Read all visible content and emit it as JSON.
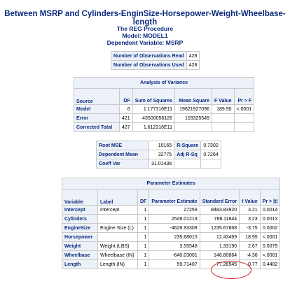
{
  "title": "Between MSRP and Cylinders-EnginSize-Horsepower-Weight-Wheelbase-length",
  "procedure": "The REG Procedure",
  "model": "Model: MODEL1",
  "dependent": "Dependent Variable: MSRP",
  "observations": {
    "read_label": "Number of Observations Read",
    "read_value": "428",
    "used_label": "Number of Observations Used",
    "used_value": "428"
  },
  "anova": {
    "caption": "Analysis of Variance",
    "headers": [
      "Source",
      "DF",
      "Sum of Squares",
      "Mean Square",
      "F Value",
      "Pr > F"
    ],
    "rows": [
      {
        "source": "Model",
        "df": "6",
        "ss": "1.177316E11",
        "ms": "19621927096",
        "f": "189.90",
        "p": "<.0001"
      },
      {
        "source": "Error",
        "df": "421",
        "ss": "43500056126",
        "ms": "103325549",
        "f": "",
        "p": ""
      },
      {
        "source": "Corrected Total",
        "df": "427",
        "ss": "1.612316E11",
        "ms": "",
        "f": "",
        "p": ""
      }
    ]
  },
  "fit": {
    "rows": [
      {
        "label": "Root MSE",
        "value": "10165",
        "label2": "R-Square",
        "value2": "0.7302"
      },
      {
        "label": "Dependent Mean",
        "value": "32775",
        "label2": "Adj R-Sq",
        "value2": "0.7264"
      },
      {
        "label": "Coeff Var",
        "value": "31.01438",
        "label2": "",
        "value2": ""
      }
    ]
  },
  "params": {
    "caption": "Parameter Estimates",
    "headers": [
      "Variable",
      "Label",
      "DF",
      "Parameter Estimate",
      "Standard Error",
      "t Value",
      "Pr > |t|"
    ],
    "rows": [
      {
        "variable": "Intercept",
        "label": "Intercept",
        "df": "1",
        "estimate": "27259",
        "se": "8483.83920",
        "t": "3.21",
        "p": "0.0014"
      },
      {
        "variable": "Cylinders",
        "label": "",
        "df": "1",
        "estimate": "2549.01219",
        "se": "788.11844",
        "t": "3.23",
        "p": "0.0013"
      },
      {
        "variable": "EngineSize",
        "label": "Engine Size (L)",
        "df": "1",
        "estimate": "-4628.93308",
        "se": "1235.67868",
        "t": "-3.75",
        "p": "0.0002"
      },
      {
        "variable": "Horsepower",
        "label": "",
        "df": "1",
        "estimate": "235.68015",
        "se": "12.43469",
        "t": "18.95",
        "p": "<.0001"
      },
      {
        "variable": "Weight",
        "label": "Weight (LBS)",
        "df": "1",
        "estimate": "3.55548",
        "se": "1.33190",
        "t": "2.67",
        "p": "0.0079"
      },
      {
        "variable": "Wheelbase",
        "label": "Wheelbase (IN)",
        "df": "1",
        "estimate": "-640.03001",
        "se": "146.80864",
        "t": "-4.36",
        "p": "<.0001"
      },
      {
        "variable": "Length",
        "label": "Length (IN)",
        "df": "1",
        "estimate": "59.71407",
        "se": "77.28545",
        "t": "0.77",
        "p": "0.4402"
      }
    ]
  }
}
